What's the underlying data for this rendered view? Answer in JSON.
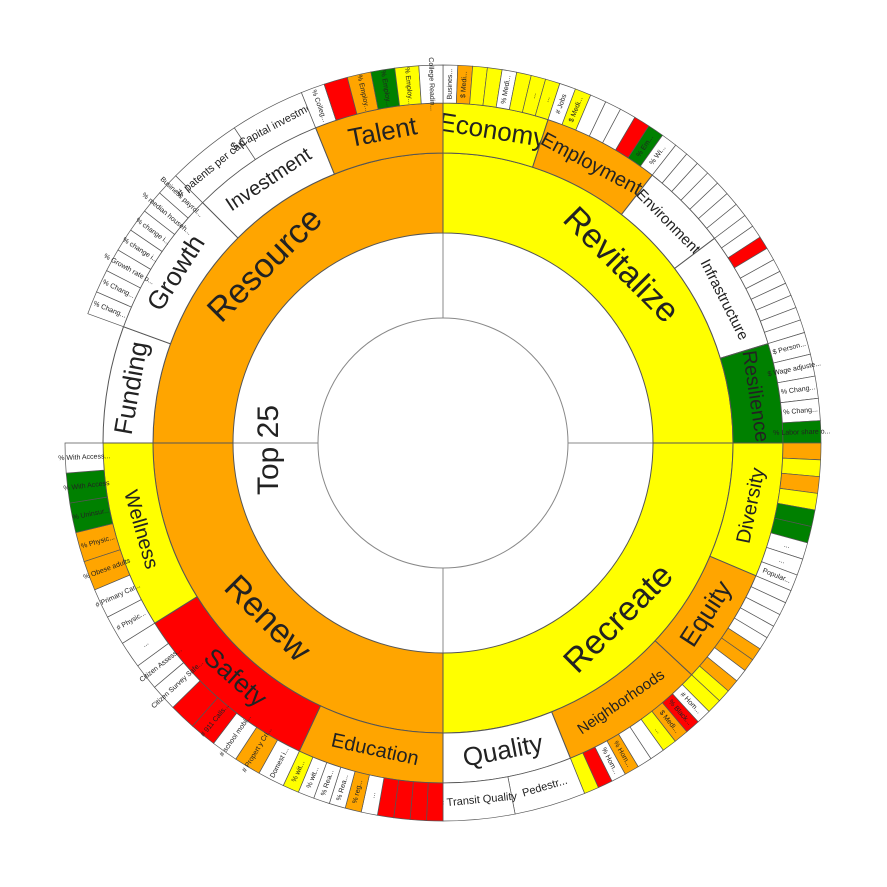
{
  "chart_data": {
    "type": "sunburst",
    "center_label": "Top 25",
    "children": [
      {
        "name": "Revitalize",
        "color": "#ffff00",
        "children": [
          {
            "name": "Economy",
            "color": "#ffff00",
            "value": 18,
            "children": [
              {
                "name": "Busines...",
                "color": "#ffffff"
              },
              {
                "name": "$ Medi...",
                "color": "#ffa500"
              },
              {
                "name": null,
                "color": "#ffff00"
              },
              {
                "name": null,
                "color": "#ffff00"
              },
              {
                "name": "% Medi...",
                "color": "#ffffff"
              },
              {
                "name": null,
                "color": "#ffff00"
              },
              {
                "name": "...",
                "color": "#ffff00"
              },
              {
                "name": "...",
                "color": "#ffff00"
              }
            ]
          },
          {
            "name": "Employment",
            "color": "#ffa500",
            "value": 20,
            "children": [
              {
                "name": "# Jobs",
                "color": "#ffffff"
              },
              {
                "name": "$ Medi...",
                "color": "#ffff00"
              },
              {
                "name": null,
                "color": "#ffffff"
              },
              {
                "name": null,
                "color": "#ffffff"
              },
              {
                "name": null,
                "color": "#ffffff"
              },
              {
                "name": null,
                "color": "#ff0000"
              },
              {
                "name": "% Em...",
                "color": "#008000"
              },
              {
                "name": "% Wi...",
                "color": "#ffffff"
              }
            ]
          },
          {
            "name": "Environment",
            "color": "#ffffff",
            "value": 15,
            "children": [
              {
                "name": null,
                "color": "#ffffff"
              },
              {
                "name": null,
                "color": "#ffffff"
              },
              {
                "name": null,
                "color": "#ffffff"
              },
              {
                "name": null,
                "color": "#ffffff"
              },
              {
                "name": null,
                "color": "#ffffff"
              },
              {
                "name": null,
                "color": "#ffffff"
              },
              {
                "name": null,
                "color": "#ffffff"
              }
            ]
          },
          {
            "name": "Infrastructure",
            "color": "#ffffff",
            "value": 20,
            "children": [
              {
                "name": null,
                "color": "#ffffff"
              },
              {
                "name": null,
                "color": "#ffffff"
              },
              {
                "name": null,
                "color": "#ff0000"
              },
              {
                "name": null,
                "color": "#ffffff"
              },
              {
                "name": null,
                "color": "#ffffff"
              },
              {
                "name": null,
                "color": "#ffffff"
              },
              {
                "name": null,
                "color": "#ffffff"
              },
              {
                "name": null,
                "color": "#ffffff"
              },
              {
                "name": null,
                "color": "#ffffff"
              },
              {
                "name": null,
                "color": "#ffffff"
              }
            ]
          },
          {
            "name": "Resilience",
            "color": "#008000",
            "value": 17,
            "children": [
              {
                "name": "$ Person...",
                "color": "#ffffff"
              },
              {
                "name": "$ Wage adjuste...",
                "color": "#ffffff"
              },
              {
                "name": "% Chang...",
                "color": "#ffffff"
              },
              {
                "name": "% Chang...",
                "color": "#ffffff"
              },
              {
                "name": "% Labor share o...",
                "color": "#008000"
              }
            ]
          }
        ]
      },
      {
        "name": "Recreate",
        "color": "#ffff00",
        "children": [
          {
            "name": "Diversity",
            "color": "#ffff00",
            "value": 23,
            "children": [
              {
                "name": null,
                "color": "#ffa500"
              },
              {
                "name": null,
                "color": "#ffff00"
              },
              {
                "name": null,
                "color": "#ffa500"
              },
              {
                "name": null,
                "color": "#ffff00"
              },
              {
                "name": null,
                "color": "#008000"
              },
              {
                "name": null,
                "color": "#008000"
              },
              {
                "name": "...",
                "color": "#ffffff"
              },
              {
                "name": "...",
                "color": "#ffffff"
              },
              {
                "name": "Popular...",
                "color": "#ffffff"
              }
            ]
          },
          {
            "name": "Equity",
            "color": "#ffa500",
            "value": 20,
            "children": [
              {
                "name": null,
                "color": "#ffffff"
              },
              {
                "name": null,
                "color": "#ffffff"
              },
              {
                "name": null,
                "color": "#ffffff"
              },
              {
                "name": null,
                "color": "#ffffff"
              },
              {
                "name": null,
                "color": "#ffffff"
              },
              {
                "name": null,
                "color": "#ffa500"
              },
              {
                "name": null,
                "color": "#ffa500"
              },
              {
                "name": null,
                "color": "#ffffff"
              },
              {
                "name": null,
                "color": "#ffa500"
              },
              {
                "name": null,
                "color": "#ffff00"
              }
            ]
          },
          {
            "name": "Neighborhoods",
            "color": "#ffa500",
            "value": 25,
            "children": [
              {
                "name": null,
                "color": "#ffff00"
              },
              {
                "name": "# Hom...",
                "color": "#ffffff"
              },
              {
                "name": "% Black...",
                "color": "#ff0000"
              },
              {
                "name": "$ Medi...",
                "color": "#ffa500"
              },
              {
                "name": "...",
                "color": "#ffff00"
              },
              {
                "name": null,
                "color": "#ffffff"
              },
              {
                "name": null,
                "color": "#ffffff"
              },
              {
                "name": "% Hom...",
                "color": "#ffa500"
              },
              {
                "name": "% Hom...",
                "color": "#ffffff"
              },
              {
                "name": null,
                "color": "#ff0000"
              },
              {
                "name": null,
                "color": "#ffff00"
              }
            ]
          },
          {
            "name": "Quality",
            "color": "#ffffff",
            "value": 22,
            "children": [
              {
                "name": "Pedestr...",
                "color": "#ffffff"
              },
              {
                "name": "# Transit Quality",
                "color": "#ffffff"
              }
            ]
          }
        ]
      },
      {
        "name": "Renew",
        "color": "#ffa500",
        "children": [
          {
            "name": "Education",
            "color": "#ffa500",
            "value": 25,
            "children": [
              {
                "name": null,
                "color": "#ff0000"
              },
              {
                "name": null,
                "color": "#ff0000"
              },
              {
                "name": null,
                "color": "#ff0000"
              },
              {
                "name": null,
                "color": "#ff0000"
              },
              {
                "name": "...",
                "color": "#ffffff"
              },
              {
                "name": "% reg...",
                "color": "#ffa500"
              },
              {
                "name": "% Rea...",
                "color": "#ffffff"
              },
              {
                "name": "% Rea...",
                "color": "#ffffff"
              },
              {
                "name": "% wit...",
                "color": "#ffffff"
              },
              {
                "name": "% wit...",
                "color": "#ffff00"
              }
            ]
          },
          {
            "name": "Safety",
            "color": "#ff0000",
            "value": 33,
            "children": [
              {
                "name": "Domest i...",
                "color": "#ffffff"
              },
              {
                "name": "# Propert y Cri...",
                "color": "#ffa500"
              },
              {
                "name": "# school mobi...",
                "color": "#ffffff"
              },
              {
                "name": "# 911 Calls...",
                "color": "#ff0000"
              },
              {
                "name": null,
                "color": "#ff0000"
              },
              {
                "name": "Citizen Survey Safe...",
                "color": "#ffffff"
              },
              {
                "name": "Citizen Assess...",
                "color": "#ffffff"
              },
              {
                "name": "...",
                "color": "#ffffff"
              }
            ]
          },
          {
            "name": "Wellness",
            "color": "#ffff00",
            "value": 32,
            "children": [
              {
                "name": "# Physic...",
                "color": "#ffffff"
              },
              {
                "name": "# Primary Car...",
                "color": "#ffffff"
              },
              {
                "name": "% Obese adults",
                "color": "#ffa500"
              },
              {
                "name": "% Physic...",
                "color": "#ffa500"
              },
              {
                "name": "% Uninsur...",
                "color": "#008000"
              },
              {
                "name": "% With Access",
                "color": "#008000"
              },
              {
                "name": "% With Access...",
                "color": "#ffffff"
              }
            ]
          }
        ]
      },
      {
        "name": "Resource",
        "color": "#ffa500",
        "children": [
          {
            "name": "Funding",
            "color": "#ffffff",
            "value": 20,
            "children": []
          },
          {
            "name": "Growth",
            "color": "#ffffff",
            "value": 25,
            "children": [
              {
                "name": "% Chang...",
                "color": "#ffffff"
              },
              {
                "name": "% Chang...",
                "color": "#ffffff"
              },
              {
                "name": "% Growth rate o...",
                "color": "#ffffff"
              },
              {
                "name": "% change i...",
                "color": "#ffffff"
              },
              {
                "name": "% change i...",
                "color": "#ffffff"
              },
              {
                "name": "% median househ...",
                "color": "#ffffff"
              },
              {
                "name": "Business payrol...",
                "color": "#ffffff"
              }
            ]
          },
          {
            "name": "Investment",
            "color": "#ffffff",
            "value": 23,
            "children": [
              {
                "name": "# patents per capita",
                "color": "#ffffff"
              },
              {
                "name": "$ Capital investment",
                "color": "#ffffff"
              }
            ]
          },
          {
            "name": "Talent",
            "color": "#ffa500",
            "value": 22,
            "children": [
              {
                "name": "% Colleg...",
                "color": "#ffffff"
              },
              {
                "name": null,
                "color": "#ff0000"
              },
              {
                "name": "% Employ...",
                "color": "#ffa500"
              },
              {
                "name": "% Employ...",
                "color": "#008000"
              },
              {
                "name": "% Employ...",
                "color": "#ffff00"
              },
              {
                "name": "College Readin...",
                "color": "#ffffff"
              }
            ]
          }
        ]
      }
    ]
  }
}
